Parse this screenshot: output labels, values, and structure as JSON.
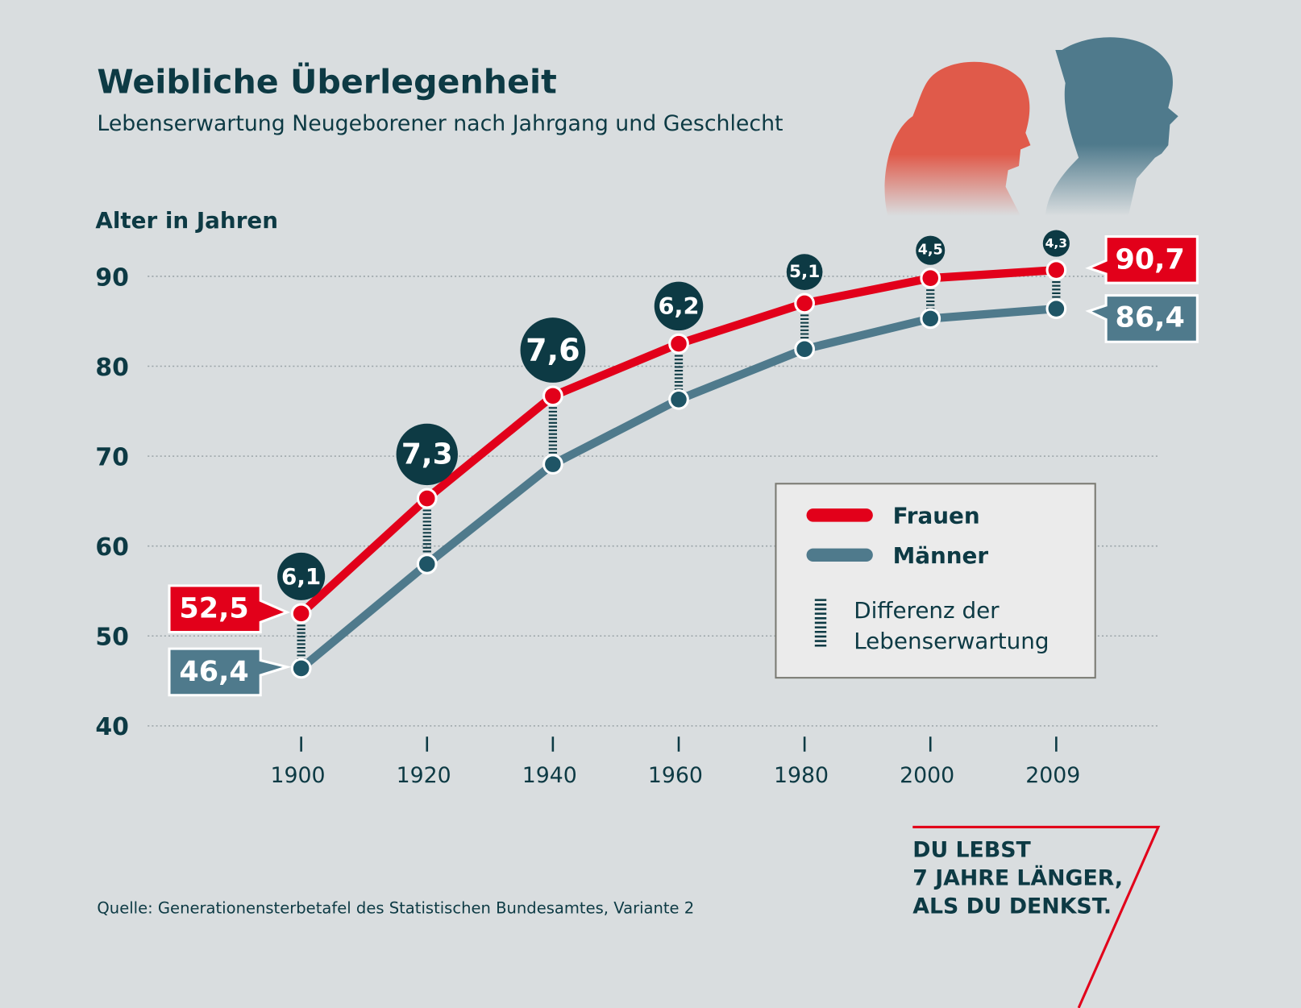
{
  "header": {
    "title": "Weibliche Überlegenheit",
    "subtitle": "Lebenserwartung Neugeborener nach Jahrgang und Geschlecht"
  },
  "chart_data": {
    "type": "line",
    "title": "Weibliche Überlegenheit",
    "subtitle": "Lebenserwartung Neugeborener nach Jahrgang und Geschlecht",
    "xlabel": "",
    "ylabel": "Alter in Jahren",
    "ylim": [
      40,
      90
    ],
    "yticks": [
      "40",
      "50",
      "60",
      "70",
      "80",
      "90"
    ],
    "ytick_values": [
      40,
      50,
      60,
      70,
      80,
      90
    ],
    "categories": [
      "1900",
      "1920",
      "1940",
      "1960",
      "1980",
      "2000",
      "2009"
    ],
    "grid": "horizontal dotted",
    "legend_position": "center-right",
    "series": [
      {
        "name": "Frauen",
        "color": "#e2001a",
        "values": [
          52.5,
          65.3,
          76.7,
          82.5,
          87.0,
          89.8,
          90.7
        ]
      },
      {
        "name": "Männer",
        "color": "#4f7a8c",
        "values": [
          46.4,
          58.0,
          69.1,
          76.3,
          81.9,
          85.3,
          86.4
        ]
      }
    ],
    "differences": {
      "name": "Differenz der Lebenserwartung",
      "labels": [
        "6,1",
        "7,3",
        "7,6",
        "6,2",
        "5,1",
        "4,5",
        "4,3"
      ]
    },
    "value_labels": {
      "frauen_start": "52,5",
      "maenner_start": "46,4",
      "frauen_end": "90,7",
      "maenner_end": "86,4"
    }
  },
  "legend": {
    "frauen": "Frauen",
    "maenner": "Männer",
    "diff_line1": "Differenz der",
    "diff_line2": "Lebenserwartung"
  },
  "footer": {
    "source": "Quelle: Generationensterbetafel des Statistischen Bundesamtes, Variante 2",
    "slogan": [
      "DU LEBST",
      "7 JAHRE LÄNGER,",
      "ALS DU DENKST."
    ]
  },
  "colors": {
    "background": "#d9dddf",
    "frauen": "#e2001a",
    "maenner": "#4f7a8c",
    "dark": "#0d3a44"
  },
  "illustration": [
    "girl-silhouette",
    "boy-silhouette"
  ]
}
